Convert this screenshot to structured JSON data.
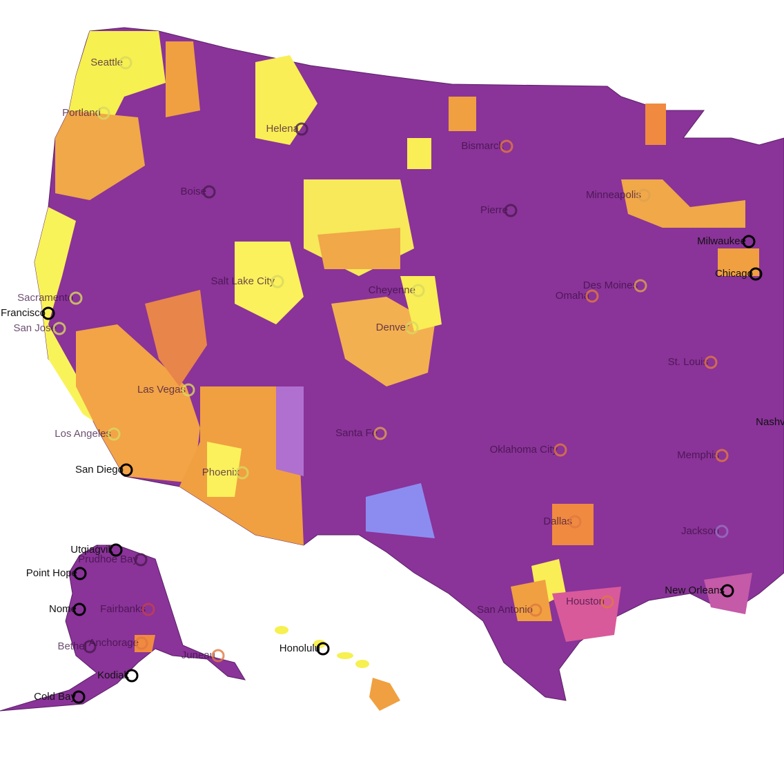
{
  "cities": [
    "Seattle",
    "Portland",
    "Helena",
    "Bismarck",
    "Boise",
    "Pierre",
    "Minneapolis",
    "Milwaukee",
    "Sacramento",
    "San Francisco",
    "San Jose",
    "Salt Lake City",
    "Cheyenne",
    "Des Moines",
    "Omaha",
    "Chicago",
    "Denver",
    "St. Louis",
    "Las Vegas",
    "Los Angeles",
    "Santa Fe",
    "Oklahoma City",
    "Nashville",
    "Memphis",
    "San Diego",
    "Phoenix",
    "Dallas",
    "Jackson",
    "Houston",
    "San Antonio",
    "New Orleans",
    "Utqiaġvik",
    "Prudhoe Bay",
    "Point Hope",
    "Nome",
    "Fairbanks",
    "Bethel",
    "Anchorage",
    "Juneau",
    "Kodiak",
    "Cold Bay",
    "Honolulu"
  ]
}
